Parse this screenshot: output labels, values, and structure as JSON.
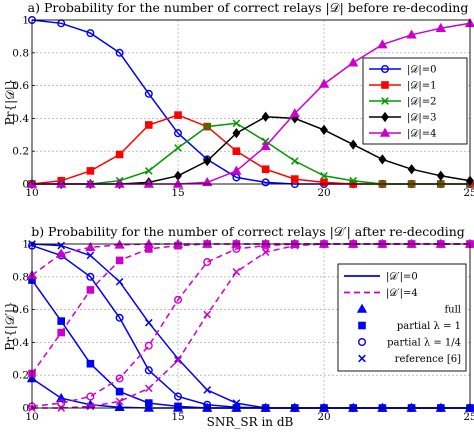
{
  "chart_data": [
    {
      "type": "line",
      "title": "a) Probability for the number of correct relays |𝒟| before re-decoding",
      "xlabel": "",
      "ylabel": "Pr{|𝒟|}",
      "xlim": [
        10,
        25
      ],
      "ylim": [
        0,
        1
      ],
      "xticks": [
        "10",
        "15",
        "20",
        "25"
      ],
      "yticks": [
        "0",
        "0.2",
        "0.4",
        "0.6",
        "0.8",
        "1"
      ],
      "grid": true,
      "legend_position": "center-right",
      "x": [
        10,
        11,
        12,
        13,
        14,
        15,
        16,
        17,
        18,
        19,
        20,
        21,
        22,
        23,
        24,
        25
      ],
      "series": [
        {
          "name": "|𝒟|=0",
          "color": "#0000ff",
          "marker": "circle",
          "values": [
            1.0,
            0.98,
            0.92,
            0.8,
            0.55,
            0.31,
            0.15,
            0.04,
            0.01,
            0.0,
            0.0,
            0.0,
            0.0,
            0.0,
            0.0,
            0.0
          ]
        },
        {
          "name": "|𝒟|=1",
          "color": "#ff0000",
          "marker": "square",
          "values": [
            0.0,
            0.02,
            0.08,
            0.18,
            0.36,
            0.42,
            0.35,
            0.2,
            0.09,
            0.03,
            0.01,
            0.0,
            0.0,
            0.0,
            0.0,
            0.0
          ]
        },
        {
          "name": "|𝒟|=2",
          "color": "#009900",
          "marker": "x",
          "values": [
            0.0,
            0.0,
            0.0,
            0.02,
            0.08,
            0.22,
            0.35,
            0.37,
            0.26,
            0.14,
            0.05,
            0.02,
            0.0,
            0.0,
            0.0,
            0.0
          ]
        },
        {
          "name": "|𝒟|=3",
          "color": "#000000",
          "marker": "diamond",
          "values": [
            0.0,
            0.0,
            0.0,
            0.0,
            0.01,
            0.05,
            0.14,
            0.31,
            0.41,
            0.4,
            0.33,
            0.24,
            0.15,
            0.09,
            0.05,
            0.02
          ]
        },
        {
          "name": "|𝒟|=4",
          "color": "#cc00cc",
          "marker": "triangle",
          "values": [
            0.0,
            0.0,
            0.0,
            0.0,
            0.0,
            0.0,
            0.01,
            0.08,
            0.23,
            0.43,
            0.61,
            0.74,
            0.85,
            0.91,
            0.95,
            0.98
          ]
        }
      ]
    },
    {
      "type": "line",
      "title": "b) Probability for the number of correct relays |𝒟′| after re-decoding",
      "xlabel": "SNR_SR in dB",
      "ylabel": "Pr{|𝒟′|}",
      "xlim": [
        10,
        25
      ],
      "ylim": [
        0,
        1
      ],
      "xticks": [
        "10",
        "15",
        "20",
        "25"
      ],
      "yticks": [
        "0",
        "0.2",
        "0.4",
        "0.6",
        "0.8",
        "1"
      ],
      "grid": true,
      "legend_position": "center-right",
      "x": [
        10,
        11,
        12,
        13,
        14,
        15,
        16,
        17,
        18,
        19,
        20,
        21,
        22,
        23,
        24,
        25
      ],
      "series": [
        {
          "name": "|𝒟′|=0 full",
          "color": "#0000ff",
          "dash": "solid",
          "marker": "triangle",
          "values": [
            0.18,
            0.06,
            0.02,
            0.005,
            0.0,
            0.0,
            0.0,
            0.0,
            0.0,
            0.0,
            0.0,
            0.0,
            0.0,
            0.0,
            0.0,
            0.0
          ]
        },
        {
          "name": "|𝒟′|=0 partial λ=1",
          "color": "#0000ff",
          "dash": "solid",
          "marker": "square",
          "values": [
            0.78,
            0.53,
            0.27,
            0.1,
            0.03,
            0.01,
            0.0,
            0.0,
            0.0,
            0.0,
            0.0,
            0.0,
            0.0,
            0.0,
            0.0,
            0.0
          ]
        },
        {
          "name": "|𝒟′|=0 partial λ=1/4",
          "color": "#0000ff",
          "dash": "solid",
          "marker": "circle",
          "values": [
            0.99,
            0.93,
            0.8,
            0.55,
            0.23,
            0.07,
            0.02,
            0.005,
            0.0,
            0.0,
            0.0,
            0.0,
            0.0,
            0.0,
            0.0,
            0.0
          ]
        },
        {
          "name": "|𝒟′|=0 reference [6]",
          "color": "#0000ff",
          "dash": "solid",
          "marker": "x",
          "values": [
            1.0,
            0.99,
            0.93,
            0.77,
            0.52,
            0.3,
            0.11,
            0.03,
            0.0,
            0.0,
            0.0,
            0.0,
            0.0,
            0.0,
            0.0,
            0.0
          ]
        },
        {
          "name": "|𝒟′|=4 full",
          "color": "#cc00cc",
          "dash": "dashed",
          "marker": "triangle",
          "values": [
            0.81,
            0.94,
            0.98,
            0.995,
            1.0,
            1.0,
            1.0,
            1.0,
            1.0,
            1.0,
            1.0,
            1.0,
            1.0,
            1.0,
            1.0,
            1.0
          ]
        },
        {
          "name": "|𝒟′|=4 partial λ=1",
          "color": "#cc00cc",
          "dash": "dashed",
          "marker": "square",
          "values": [
            0.21,
            0.46,
            0.72,
            0.9,
            0.97,
            0.99,
            1.0,
            1.0,
            1.0,
            1.0,
            1.0,
            1.0,
            1.0,
            1.0,
            1.0,
            1.0
          ]
        },
        {
          "name": "|𝒟′|=4 partial λ=1/4",
          "color": "#cc00cc",
          "dash": "dashed",
          "marker": "circle",
          "values": [
            0.01,
            0.03,
            0.07,
            0.18,
            0.38,
            0.66,
            0.89,
            0.97,
            0.99,
            1.0,
            1.0,
            1.0,
            1.0,
            1.0,
            1.0,
            1.0
          ]
        },
        {
          "name": "|𝒟′|=4 reference [6]",
          "color": "#cc00cc",
          "dash": "dashed",
          "marker": "x",
          "values": [
            0.0,
            0.0,
            0.01,
            0.04,
            0.12,
            0.29,
            0.57,
            0.83,
            0.95,
            0.99,
            1.0,
            1.0,
            1.0,
            1.0,
            1.0,
            1.0
          ]
        }
      ],
      "legend": [
        {
          "label": "|𝒟′|=0",
          "kind": "line",
          "color": "#0000ff",
          "dash": "solid"
        },
        {
          "label": "|𝒟′|=4",
          "kind": "line",
          "color": "#cc00cc",
          "dash": "dashed"
        },
        {
          "label": "full",
          "kind": "marker",
          "marker": "triangle",
          "color": "#0000ff"
        },
        {
          "label": "partial λ = 1",
          "kind": "marker",
          "marker": "square",
          "color": "#0000ff"
        },
        {
          "label": "partial λ = 1/4",
          "kind": "marker",
          "marker": "circle",
          "color": "#0000ff"
        },
        {
          "label": "reference [6]",
          "kind": "marker",
          "marker": "x",
          "color": "#0000ff"
        }
      ]
    }
  ]
}
